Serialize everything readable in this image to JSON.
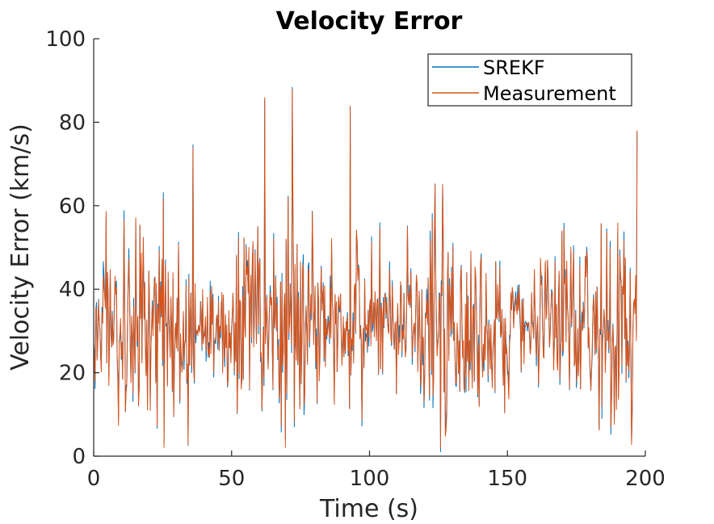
{
  "chart_data": {
    "type": "line",
    "title": "Velocity Error",
    "xlabel": "Time (s)",
    "ylabel": "Velocity Error (km/s)",
    "xlim": [
      0,
      200
    ],
    "ylim": [
      0,
      100
    ],
    "xticks": [
      0,
      50,
      100,
      150,
      200
    ],
    "yticks": [
      0,
      20,
      40,
      60,
      80,
      100
    ],
    "grid": false,
    "legend_position": "top-right",
    "x_end": 197,
    "sample_step": 0.25,
    "series": [
      {
        "name": "SREKF",
        "color": "#0072BD",
        "initial_point": [
          0,
          0
        ],
        "mean": 31,
        "stdev": 10,
        "notable_peaks": [
          [
            62,
            86
          ],
          [
            72,
            88
          ],
          [
            93,
            84
          ],
          [
            36,
            74
          ],
          [
            197,
            78
          ]
        ]
      },
      {
        "name": "Measurement",
        "color": "#D95319",
        "mean": 31,
        "stdev": 10,
        "notable_peaks": [
          [
            62,
            86
          ],
          [
            72,
            88
          ],
          [
            93,
            84
          ],
          [
            36,
            74
          ],
          [
            197,
            78
          ]
        ]
      }
    ]
  }
}
